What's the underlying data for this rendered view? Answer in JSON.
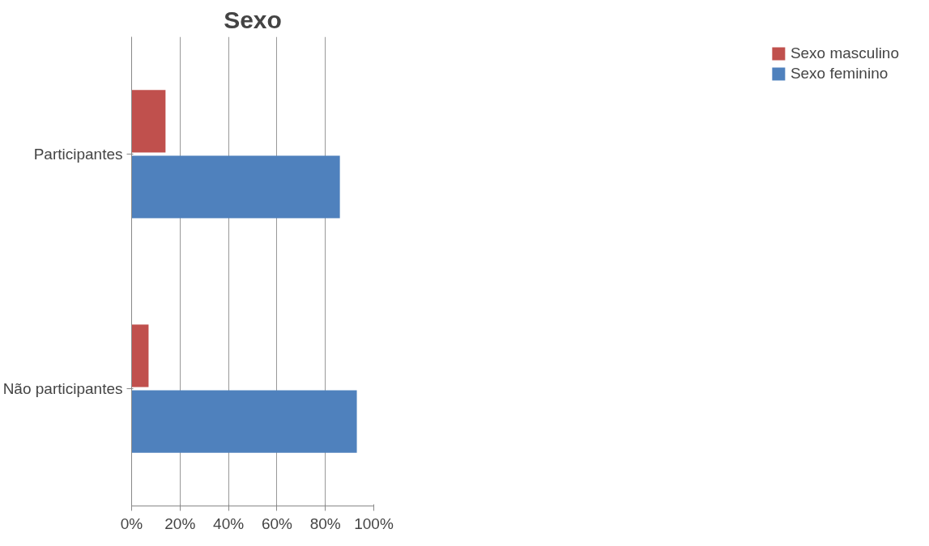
{
  "chart_data": {
    "type": "bar",
    "orientation": "horizontal",
    "title": "Sexo",
    "categories": [
      "Participantes",
      "Não participantes"
    ],
    "series": [
      {
        "name": "Sexo masculino",
        "color": "#c0504d",
        "values": [
          14,
          7
        ]
      },
      {
        "name": "Sexo feminino",
        "color": "#4f81bd",
        "values": [
          86,
          93
        ]
      }
    ],
    "xlim": [
      0,
      100
    ],
    "xticks": [
      {
        "value": 0,
        "label": "0%"
      },
      {
        "value": 20,
        "label": "20%"
      },
      {
        "value": 40,
        "label": "40%"
      },
      {
        "value": 60,
        "label": "60%"
      },
      {
        "value": 80,
        "label": "80%"
      },
      {
        "value": 100,
        "label": "100%"
      }
    ],
    "grid": "x",
    "legend": "right"
  }
}
